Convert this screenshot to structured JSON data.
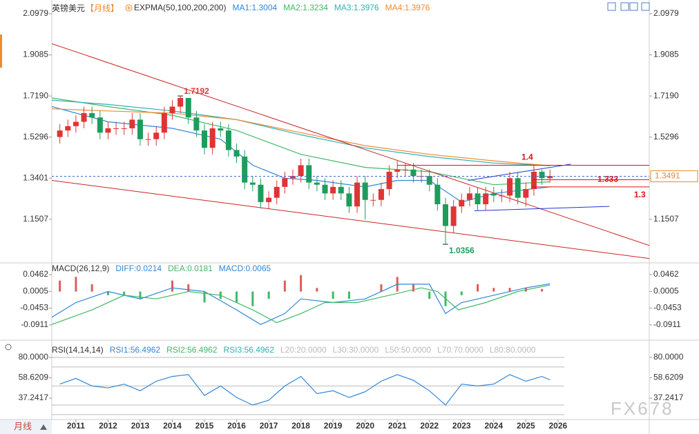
{
  "ui": {
    "period_button": "月线",
    "watermark": "FX678"
  },
  "chart_data": [
    {
      "type": "candlestick",
      "title": "英镑美元",
      "period": "【月线】",
      "indicator": "EXPMA(50,100,200,200)",
      "up_color": "#e03434",
      "down_color": "#1f9c5c",
      "x": [
        2010.5,
        2010.75,
        2011,
        2011.25,
        2011.5,
        2011.75,
        2012,
        2012.25,
        2012.5,
        2012.75,
        2013,
        2013.25,
        2013.5,
        2013.75,
        2014,
        2014.25,
        2014.5,
        2014.75,
        2015,
        2015.25,
        2015.5,
        2015.75,
        2016,
        2016.25,
        2016.5,
        2016.75,
        2017,
        2017.25,
        2017.5,
        2017.75,
        2018,
        2018.25,
        2018.5,
        2018.75,
        2019,
        2019.25,
        2019.5,
        2019.75,
        2020,
        2020.25,
        2020.5,
        2020.75,
        2021,
        2021.25,
        2021.5,
        2021.75,
        2022,
        2022.25,
        2022.5,
        2022.75,
        2023,
        2023.25,
        2023.5,
        2023.75,
        2024,
        2024.25,
        2024.5,
        2024.75,
        2025,
        2025.25,
        2025.5,
        2025.75
      ],
      "open": [
        1.53,
        1.56,
        1.58,
        1.6,
        1.64,
        1.62,
        1.55,
        1.57,
        1.57,
        1.57,
        1.61,
        1.52,
        1.52,
        1.55,
        1.64,
        1.67,
        1.71,
        1.62,
        1.56,
        1.48,
        1.57,
        1.56,
        1.47,
        1.44,
        1.32,
        1.31,
        1.23,
        1.25,
        1.3,
        1.34,
        1.35,
        1.4,
        1.32,
        1.31,
        1.27,
        1.3,
        1.27,
        1.21,
        1.32,
        1.24,
        1.24,
        1.29,
        1.37,
        1.38,
        1.38,
        1.35,
        1.35,
        1.31,
        1.22,
        1.12,
        1.21,
        1.24,
        1.27,
        1.22,
        1.27,
        1.26,
        1.26,
        1.34,
        1.25,
        1.29,
        1.37,
        1.34
      ],
      "high": [
        1.59,
        1.61,
        1.63,
        1.67,
        1.67,
        1.65,
        1.6,
        1.6,
        1.6,
        1.64,
        1.64,
        1.55,
        1.58,
        1.67,
        1.7,
        1.7192,
        1.71,
        1.65,
        1.59,
        1.6,
        1.6,
        1.59,
        1.5,
        1.47,
        1.35,
        1.34,
        1.28,
        1.33,
        1.37,
        1.38,
        1.43,
        1.43,
        1.35,
        1.34,
        1.33,
        1.33,
        1.3,
        1.35,
        1.35,
        1.27,
        1.32,
        1.4,
        1.42,
        1.41,
        1.41,
        1.38,
        1.38,
        1.34,
        1.25,
        1.24,
        1.27,
        1.3,
        1.3,
        1.3,
        1.3,
        1.29,
        1.37,
        1.37,
        1.32,
        1.4,
        1.38,
        1.38
      ],
      "low": [
        1.5,
        1.53,
        1.55,
        1.57,
        1.59,
        1.52,
        1.52,
        1.54,
        1.54,
        1.54,
        1.49,
        1.49,
        1.49,
        1.52,
        1.61,
        1.64,
        1.59,
        1.53,
        1.45,
        1.45,
        1.53,
        1.44,
        1.41,
        1.29,
        1.28,
        1.2,
        1.2,
        1.22,
        1.27,
        1.31,
        1.32,
        1.29,
        1.28,
        1.24,
        1.24,
        1.24,
        1.18,
        1.18,
        1.15,
        1.21,
        1.21,
        1.26,
        1.34,
        1.35,
        1.32,
        1.32,
        1.28,
        1.19,
        1.0356,
        1.09,
        1.18,
        1.21,
        1.19,
        1.19,
        1.23,
        1.23,
        1.23,
        1.22,
        1.21,
        1.26,
        1.31,
        1.32
      ],
      "close": [
        1.56,
        1.58,
        1.6,
        1.64,
        1.62,
        1.55,
        1.57,
        1.57,
        1.57,
        1.61,
        1.52,
        1.52,
        1.55,
        1.64,
        1.67,
        1.71,
        1.62,
        1.56,
        1.48,
        1.57,
        1.56,
        1.47,
        1.44,
        1.32,
        1.31,
        1.23,
        1.25,
        1.3,
        1.34,
        1.35,
        1.4,
        1.32,
        1.31,
        1.27,
        1.3,
        1.27,
        1.21,
        1.32,
        1.24,
        1.24,
        1.29,
        1.37,
        1.38,
        1.38,
        1.35,
        1.35,
        1.31,
        1.22,
        1.12,
        1.21,
        1.24,
        1.27,
        1.22,
        1.27,
        1.26,
        1.26,
        1.34,
        1.25,
        1.29,
        1.37,
        1.34,
        1.35
      ],
      "series": [
        {
          "name": "MA1:1.3004",
          "color": "#2f86d8",
          "x": [
            2010.25,
            2012,
            2014,
            2015.5,
            2016.5,
            2017.5,
            2018.5,
            2020,
            2021,
            2022,
            2023,
            2024,
            2025.75
          ],
          "values": [
            1.67,
            1.6,
            1.57,
            1.52,
            1.4,
            1.34,
            1.33,
            1.3,
            1.33,
            1.33,
            1.23,
            1.27,
            1.3004
          ]
        },
        {
          "name": "MA2:1.3234",
          "color": "#3fb866",
          "x": [
            2010.25,
            2012,
            2014,
            2016,
            2018,
            2020,
            2022,
            2024,
            2025.75
          ],
          "values": [
            1.71,
            1.67,
            1.63,
            1.56,
            1.45,
            1.39,
            1.37,
            1.31,
            1.3234
          ]
        },
        {
          "name": "MA3:1.3976",
          "color": "#2fb0b0",
          "x": [
            2010.25,
            2012,
            2014,
            2016,
            2018,
            2020,
            2022,
            2024,
            2025.75
          ],
          "values": [
            1.7,
            1.68,
            1.65,
            1.61,
            1.54,
            1.48,
            1.44,
            1.41,
            1.3976
          ]
        },
        {
          "name": "MA4:1.3976",
          "color": "#ee8a33",
          "x": [
            2010.25,
            2012,
            2014,
            2016,
            2018,
            2020,
            2022,
            2024,
            2025.75
          ],
          "values": [
            1.66,
            1.65,
            1.64,
            1.61,
            1.55,
            1.49,
            1.45,
            1.42,
            1.3976
          ]
        }
      ],
      "trend_lines": [
        {
          "color": "#cc2222",
          "x": [
            2010.25,
            2028.84
          ],
          "values": [
            1.96,
            1.03
          ]
        },
        {
          "color": "#cc2222",
          "x": [
            2010.25,
            2028.84
          ],
          "values": [
            1.33,
            0.97
          ]
        },
        {
          "color": "#2233cc",
          "x": [
            2023.2,
            2026.4
          ],
          "values": [
            1.33,
            1.405
          ]
        },
        {
          "color": "#2233cc",
          "x": [
            2023.4,
            2027.6
          ],
          "values": [
            1.19,
            1.21
          ]
        }
      ],
      "levels": [
        {
          "value": 1.4,
          "x": 2021.0,
          "color": "#dd1111"
        },
        {
          "value": 1.333,
          "x": 2025.2,
          "color": "#dd1111"
        },
        {
          "value": 1.3,
          "x": 2025.2,
          "color": "#dd1111"
        }
      ],
      "price_line": {
        "value": 1.3491,
        "color": "#3a66c8"
      },
      "annotations": [
        {
          "x": 2014.25,
          "value": 1.7192,
          "color": "#e03434"
        },
        {
          "x": 2022.5,
          "value": 1.0356,
          "color": "#1f9c5c"
        }
      ],
      "xlim": [
        2010.25,
        2028.84
      ],
      "ylim": [
        0.953,
        2.136
      ],
      "yticks": [
        2.0979,
        1.9085,
        {
          "value": 1.719,
          "label": "1.7190"
        },
        1.5296,
        1.3401,
        1.1507
      ]
    },
    {
      "type": "macd",
      "title": "MACD(26,12,9)",
      "series": [
        {
          "name": "DIFF:0.0214",
          "color": "#2f86d8",
          "x": [
            2010.25,
            2011,
            2012,
            2013,
            2014,
            2015,
            2016,
            2016.75,
            2017.5,
            2018,
            2019,
            2020,
            2021,
            2022,
            2022.5,
            2023,
            2024,
            2025,
            2025.75
          ],
          "values": [
            -0.07,
            -0.03,
            0,
            -0.02,
            0.01,
            0,
            -0.05,
            -0.09,
            -0.06,
            -0.02,
            -0.03,
            -0.02,
            0.02,
            0.02,
            -0.06,
            -0.03,
            -0.01,
            0.01,
            0.0214
          ]
        },
        {
          "name": "DEA:0.0181",
          "color": "#3fb866",
          "x": [
            2010.25,
            2011.5,
            2012.5,
            2013.5,
            2014.5,
            2015.5,
            2016.5,
            2017.25,
            2018,
            2018.75,
            2019.75,
            2020.75,
            2021.75,
            2022.25,
            2022.9,
            2023.75,
            2024.75,
            2025.75
          ],
          "values": [
            -0.09,
            -0.05,
            -0.01,
            -0.02,
            0,
            -0.01,
            -0.05,
            -0.085,
            -0.06,
            -0.03,
            -0.03,
            -0.01,
            0.01,
            0,
            -0.05,
            -0.03,
            0,
            0.0181
          ]
        }
      ],
      "bars": {
        "name": "MACD:0.0065",
        "color": "#2f86d8",
        "up_color": "#e05a5a",
        "down_color": "#3fb866",
        "x": [
          2010.5,
          2011,
          2011.5,
          2012,
          2012.5,
          2013,
          2013.5,
          2014,
          2014.5,
          2015,
          2015.5,
          2016,
          2016.5,
          2017,
          2017.5,
          2018,
          2018.5,
          2019,
          2019.5,
          2020,
          2020.5,
          2021,
          2021.5,
          2022,
          2022.5,
          2023,
          2023.5,
          2024,
          2024.5,
          2025,
          2025.5
        ],
        "values": [
          0.03,
          0.04,
          0.02,
          -0.01,
          -0.01,
          -0.02,
          0,
          0.03,
          0.02,
          -0.03,
          -0.02,
          -0.03,
          -0.04,
          -0.02,
          0.03,
          0.045,
          0.01,
          -0.02,
          -0.02,
          0,
          0.02,
          0.04,
          0.02,
          -0.02,
          -0.04,
          -0.01,
          0.02,
          0.01,
          0.01,
          0.01,
          0.007
        ]
      },
      "xlim": [
        2010.25,
        2028.84
      ],
      "ylim": [
        -0.131,
        0.0746
      ],
      "yticks": [
        0.0462,
        0.0005,
        -0.0453,
        -0.0911
      ]
    },
    {
      "type": "rsi",
      "title": "RSI(14,14,14)",
      "series": [
        {
          "name": "RSI1:56.4962",
          "color": "#2f86d8",
          "x": [
            2010.5,
            2011,
            2011.5,
            2012,
            2012.5,
            2013,
            2013.5,
            2014,
            2014.5,
            2015,
            2015.5,
            2016,
            2016.5,
            2017,
            2017.5,
            2018,
            2018.5,
            2019,
            2019.5,
            2020,
            2020.5,
            2021,
            2021.5,
            2022,
            2022.5,
            2023,
            2023.5,
            2024,
            2024.5,
            2025,
            2025.5,
            2025.75
          ],
          "values": [
            52,
            58,
            50,
            48,
            52,
            45,
            55,
            60,
            62,
            40,
            50,
            38,
            30,
            35,
            50,
            60,
            42,
            45,
            38,
            44,
            55,
            62,
            56,
            45,
            30,
            52,
            50,
            52,
            62,
            55,
            60,
            56.4962
          ]
        },
        {
          "name": "RSI2:56.4962",
          "color": "#3fb866"
        },
        {
          "name": "RSI3:56.4962",
          "color": "#2fb0b0"
        }
      ],
      "levels": [
        {
          "value": 20,
          "label": "L20:20.0000"
        },
        {
          "value": 30,
          "label": "L30:30.0000"
        },
        {
          "value": 50,
          "label": "L50:50.0000"
        },
        {
          "value": 70,
          "label": "L70:70.0000"
        },
        {
          "value": 80,
          "label": "L80:80.0000"
        }
      ],
      "level_color": "#bbbbbb",
      "xlim": [
        2010.25,
        2028.84
      ],
      "ylim": [
        14.8,
        96.7
      ],
      "yticks": [
        {
          "value": 80,
          "label": "80.0000"
        },
        58.6209,
        37.2417
      ],
      "xticks": [
        2011,
        2012,
        2013,
        2014,
        2015,
        2016,
        2017,
        2018,
        2019,
        2020,
        2021,
        2022,
        2023,
        2024,
        2025,
        2026
      ]
    }
  ]
}
